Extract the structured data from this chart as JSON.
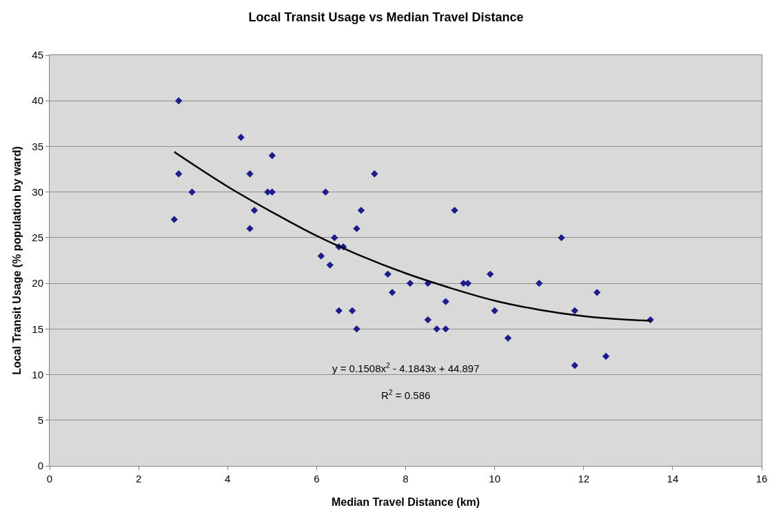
{
  "chart_data": {
    "type": "scatter",
    "title": "Local Transit Usage vs Median Travel Distance",
    "xlabel": "Median Travel Distance (km)",
    "ylabel": "Local Transit Usage (% population by ward)",
    "series": [
      {
        "color": "#1c1c8c",
        "marker": "diamond",
        "x": [
          2.8,
          2.9,
          2.9,
          3.2,
          4.3,
          4.5,
          4.5,
          4.6,
          4.9,
          5.0,
          5.0,
          6.1,
          6.2,
          6.3,
          6.4,
          6.5,
          6.5,
          6.6,
          6.8,
          6.9,
          6.9,
          7.0,
          7.3,
          7.6,
          7.7,
          8.1,
          8.5,
          8.5,
          8.7,
          8.9,
          8.9,
          9.1,
          9.3,
          9.4,
          9.9,
          10.0,
          10.3,
          11.0,
          11.5,
          11.8,
          11.8,
          12.3,
          12.5,
          13.5
        ],
        "values": [
          27,
          40,
          32,
          30,
          36,
          32,
          26,
          28,
          30,
          34,
          30,
          23,
          30,
          22,
          25,
          17,
          24,
          24,
          17,
          15,
          26,
          28,
          32,
          21,
          19,
          20,
          20,
          16,
          15,
          18,
          15,
          28,
          20,
          20,
          21,
          17,
          14,
          20,
          25,
          17,
          11,
          19,
          12,
          16
        ]
      },
      {
        "type": "line",
        "color": "#000000",
        "x": [
          2.8,
          4,
          5,
          6,
          7,
          8,
          9,
          10,
          11,
          12,
          13,
          13.5
        ],
        "values": [
          34.4,
          30.6,
          27.8,
          25.2,
          23.0,
          21.1,
          19.5,
          18.1,
          17.1,
          16.4,
          16.0,
          15.9
        ]
      }
    ],
    "annotations": [
      "y = 0.1508x$^{2}$ - 4.1843x + 44.897",
      "R$^{2}$ = 0.586"
    ],
    "xlim": [
      0,
      16
    ],
    "xticks": [
      0,
      2,
      4,
      6,
      8,
      10,
      12,
      14,
      16
    ],
    "ylim": [
      0,
      45
    ],
    "yticks": [
      0,
      5,
      10,
      15,
      20,
      25,
      30,
      35,
      40,
      45
    ],
    "grid": "y",
    "line_style": "solid"
  }
}
